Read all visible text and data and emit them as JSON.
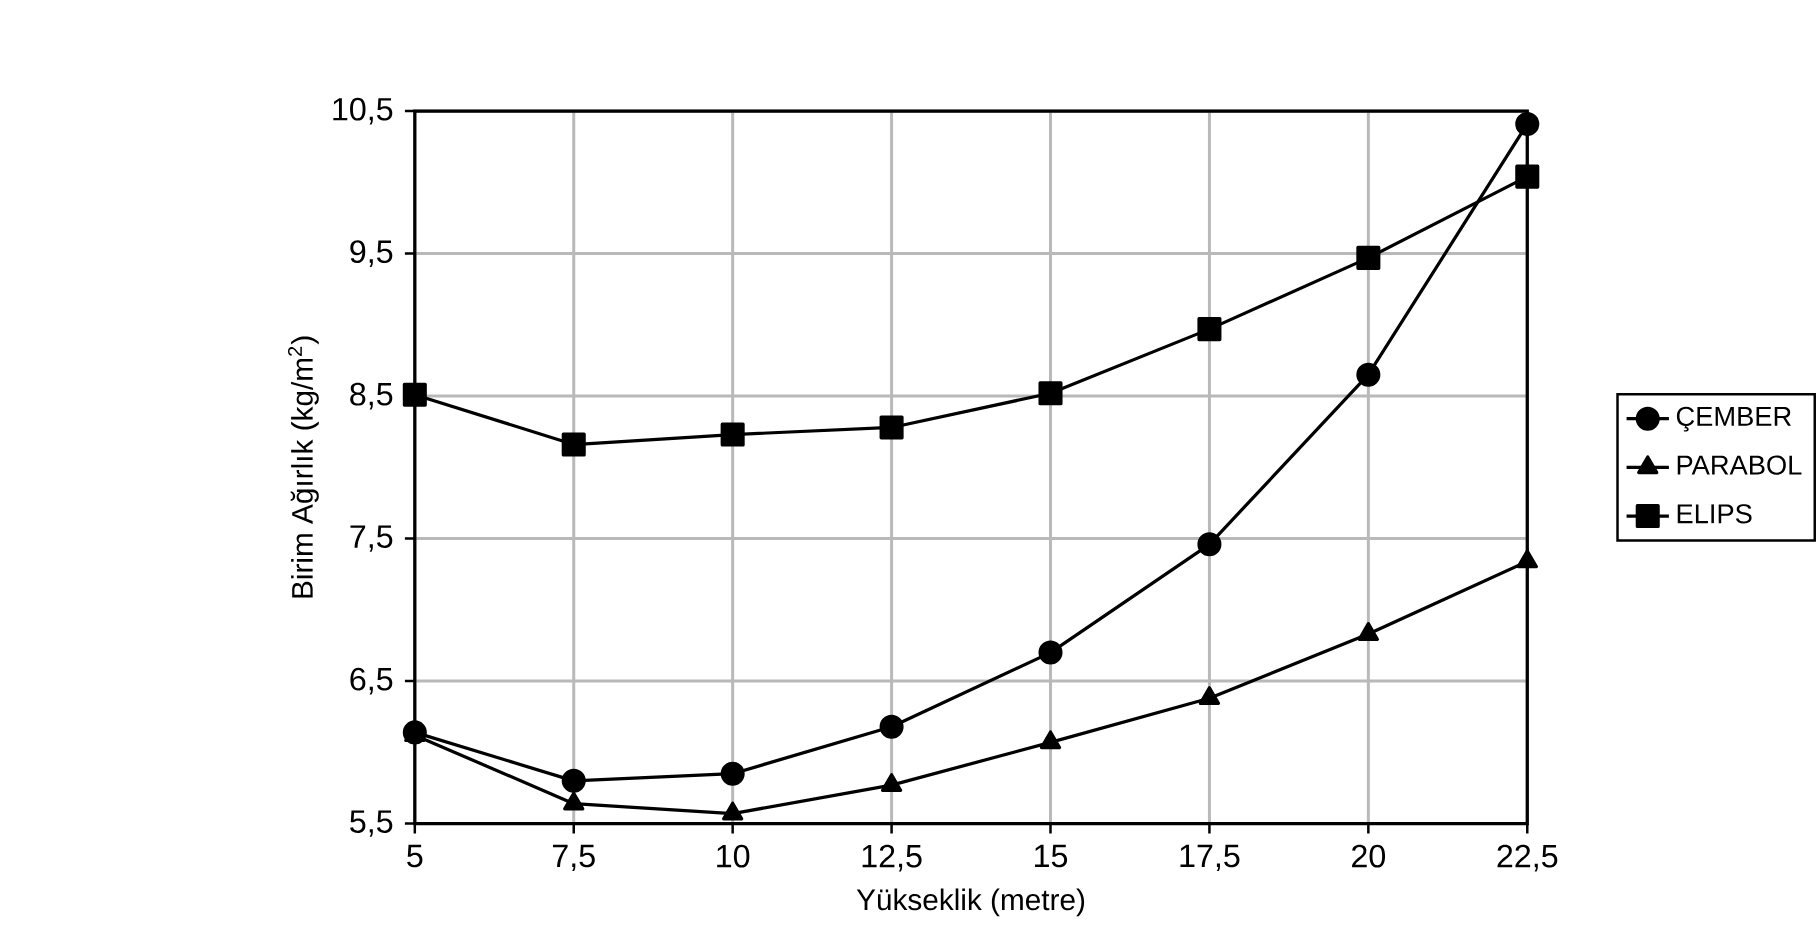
{
  "chart_data": {
    "type": "line",
    "xlabel": "Yükseklik (metre)",
    "ylabel": "Birim Ağırlık  (kg/m$^{2}$)",
    "x": [
      5,
      7.5,
      10,
      12.5,
      15,
      17.5,
      20,
      22.5
    ],
    "series": [
      {
        "name": "ÇEMBER",
        "color": "#000000",
        "marker": "circle",
        "values": [
          6.14,
          5.8,
          5.85,
          6.18,
          6.7,
          7.46,
          8.65,
          10.41
        ]
      },
      {
        "name": "PARABOL",
        "color": "#000000",
        "marker": "triangle",
        "values": [
          6.12,
          5.64,
          5.57,
          5.77,
          6.07,
          6.38,
          6.83,
          7.34
        ]
      },
      {
        "name": "ELIPS",
        "color": "#000000",
        "marker": "square",
        "values": [
          8.51,
          8.16,
          8.23,
          8.28,
          8.52,
          8.97,
          9.47,
          10.04
        ]
      }
    ],
    "xlim": [
      5,
      22.5
    ],
    "xticks": [
      5,
      {
        "value": 7.5,
        "label": "7,5"
      },
      10,
      {
        "value": 12.5,
        "label": "12,5"
      },
      15,
      {
        "value": 17.5,
        "label": "17,5"
      },
      20,
      {
        "value": 22.5,
        "label": "22,5"
      }
    ],
    "ylim": [
      5.5,
      10.5
    ],
    "yticks": [
      {
        "value": 5.5,
        "label": "5,5"
      },
      {
        "value": 6.5,
        "label": "6,5"
      },
      {
        "value": 7.5,
        "label": "7,5"
      },
      {
        "value": 8.5,
        "label": "8,5"
      },
      {
        "value": 9.5,
        "label": "9,5"
      },
      {
        "value": 10.5,
        "label": "10,5"
      }
    ],
    "grid": true,
    "legend": "right",
    "line_style": "solid"
  }
}
